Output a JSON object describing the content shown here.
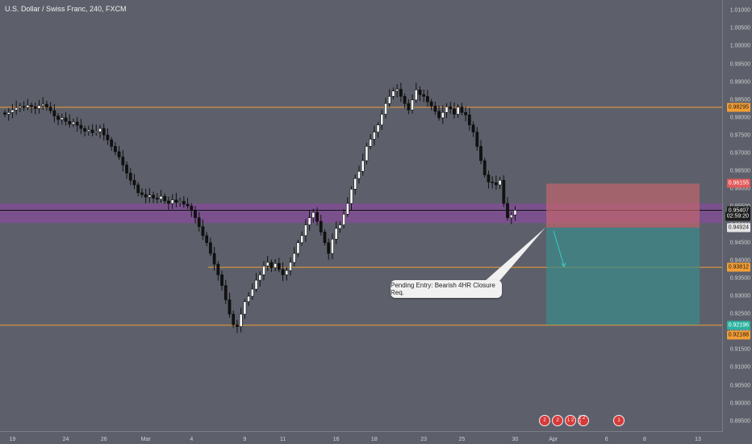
{
  "header": {
    "symbol_title": "U.S. Dollar / Swiss Franc, 240, FXCM"
  },
  "price_axis": {
    "ticks": [
      "1.01000",
      "1.00500",
      "1.00000",
      "0.99500",
      "0.99000",
      "0.98500",
      "0.98000",
      "0.97500",
      "0.97000",
      "0.96500",
      "0.96000",
      "0.95500",
      "0.95000",
      "0.94500",
      "0.94000",
      "0.93500",
      "0.93000",
      "0.92500",
      "0.92000",
      "0.91500",
      "0.91000",
      "0.90500",
      "0.90000",
      "0.89500"
    ],
    "tags": [
      {
        "label": "0.98295",
        "price": 0.98295,
        "bg": "#f29d35",
        "color": "#1a1a1a"
      },
      {
        "label": "0.96155",
        "price": 0.96155,
        "bg": "#e15a5a",
        "color": "#ffffff"
      },
      {
        "label": "0.95407",
        "price": 0.95407,
        "bg": "#1c1c1c",
        "color": "#ffffff"
      },
      {
        "label": "02:59:20",
        "price": 0.95235,
        "bg": "#1c1c1c",
        "color": "#ffffff"
      },
      {
        "label": "0.94924",
        "price": 0.94924,
        "bg": "#e6e6e6",
        "color": "#1a1a1a"
      },
      {
        "label": "0.93812",
        "price": 0.93812,
        "bg": "#f29d35",
        "color": "#1a1a1a"
      },
      {
        "label": "0.92196",
        "price": 0.92196,
        "bg": "#2bb3a0",
        "color": "#ffffff"
      },
      {
        "label": "0.92188",
        "price": 0.91915,
        "bg": "#f29d35",
        "color": "#1a1a1a"
      }
    ]
  },
  "time_axis": {
    "labels": [
      "19",
      "24",
      "26",
      "Mar",
      "4",
      "9",
      "11",
      "16",
      "18",
      "23",
      "25",
      "30",
      "Apr",
      "6",
      "8",
      "13"
    ],
    "label_bars": [
      2,
      16,
      26,
      37,
      49,
      63,
      73,
      87,
      97,
      110,
      120,
      134,
      144,
      158,
      168,
      182
    ]
  },
  "annotation": {
    "text": "Pending Entry: Bearish 4HR Closure Req."
  },
  "levels": {
    "horizontal": [
      0.98295,
      0.93812,
      0.92188
    ],
    "zone_top": 0.956,
    "zone_bottom": 0.9505,
    "stop_top": 0.96155,
    "entry": 0.94924,
    "target": 0.92196
  },
  "events": [
    "2",
    "2",
    "1 2",
    "2 2 2",
    "1"
  ],
  "colors": {
    "background": "#5d606b",
    "candle_up": "#ffffff",
    "candle_down": "#111111",
    "level_line": "#f29d35",
    "zone": "#8a4aa0",
    "stop_area": "#c2656e",
    "target_area": "#3a8c8a",
    "arrow": "#3ec9c0"
  },
  "chart_data": {
    "type": "candlestick",
    "symbol": "USD/CHF",
    "timeframe": "240",
    "close_series": [
      0.981,
      0.9815,
      0.9822,
      0.9828,
      0.9832,
      0.9829,
      0.9835,
      0.9831,
      0.9826,
      0.9834,
      0.9838,
      0.983,
      0.982,
      0.9805,
      0.9795,
      0.98,
      0.979,
      0.9782,
      0.9788,
      0.9779,
      0.977,
      0.9762,
      0.9766,
      0.9758,
      0.9761,
      0.977,
      0.9752,
      0.9738,
      0.972,
      0.9705,
      0.969,
      0.9668,
      0.9645,
      0.9625,
      0.9612,
      0.959,
      0.9585,
      0.9578,
      0.9583,
      0.9575,
      0.9572,
      0.958,
      0.9567,
      0.956,
      0.957,
      0.9563,
      0.9566,
      0.9558,
      0.9553,
      0.954,
      0.952,
      0.9495,
      0.947,
      0.945,
      0.942,
      0.939,
      0.936,
      0.933,
      0.929,
      0.925,
      0.922,
      0.9215,
      0.925,
      0.9285,
      0.93,
      0.932,
      0.9345,
      0.936,
      0.9385,
      0.9395,
      0.938,
      0.9392,
      0.9375,
      0.936,
      0.9372,
      0.9395,
      0.942,
      0.945,
      0.947,
      0.95,
      0.952,
      0.9535,
      0.951,
      0.948,
      0.945,
      0.942,
      0.946,
      0.949,
      0.95,
      0.953,
      0.956,
      0.96,
      0.963,
      0.965,
      0.968,
      0.972,
      0.974,
      0.976,
      0.978,
      0.981,
      0.984,
      0.986,
      0.9875,
      0.988,
      0.986,
      0.984,
      0.9822,
      0.985,
      0.9878,
      0.9865,
      0.986,
      0.9845,
      0.9833,
      0.9818,
      0.98,
      0.9815,
      0.9831,
      0.9825,
      0.981,
      0.983,
      0.9815,
      0.9808,
      0.978,
      0.976,
      0.972,
      0.968,
      0.964,
      0.962,
      0.9618,
      0.9612,
      0.9625,
      0.956,
      0.952,
      0.9528,
      0.9541
    ]
  }
}
